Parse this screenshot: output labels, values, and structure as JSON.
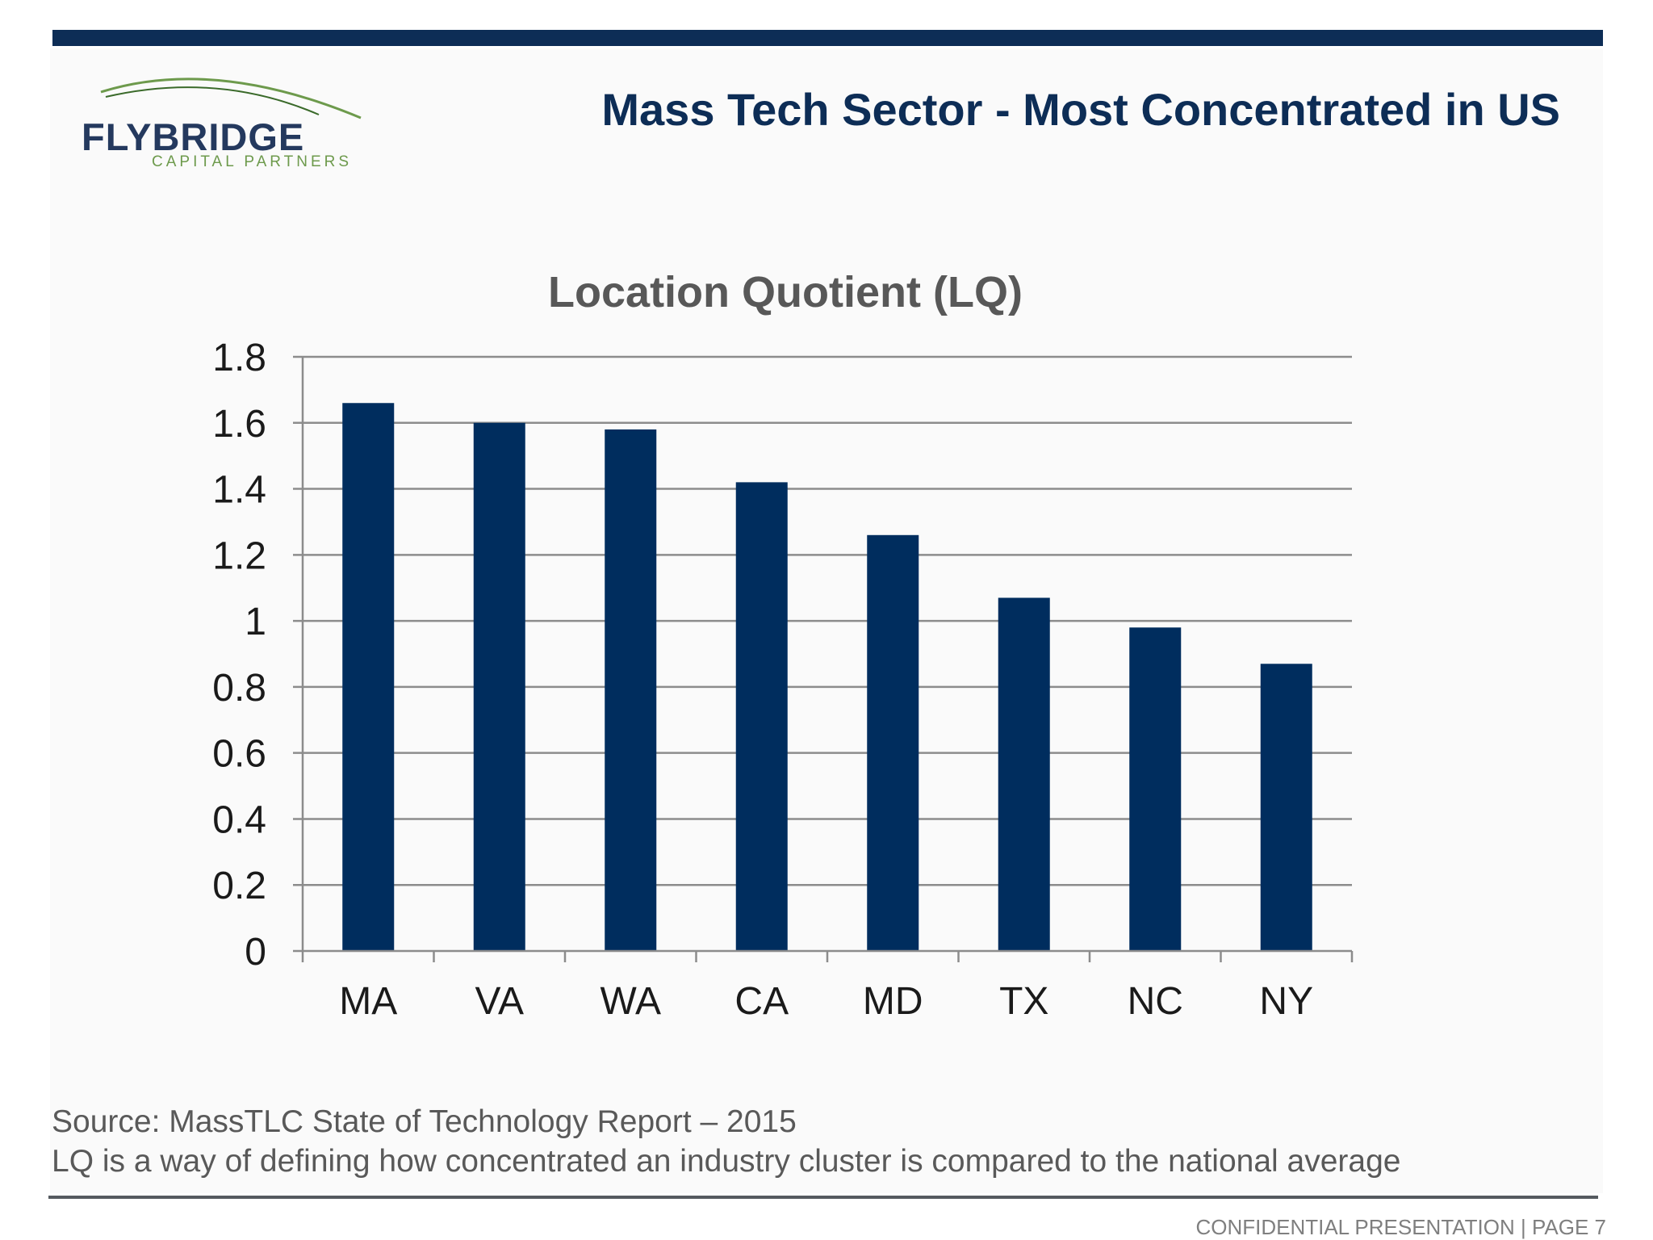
{
  "logo": {
    "word": "FLYBRIDGE",
    "sub": "CAPITAL PARTNERS"
  },
  "slide_title": "Mass Tech Sector - Most Concentrated in US",
  "colors": {
    "bar": "#002d5e",
    "title": "#0d2d56",
    "grid": "#8c8c8c"
  },
  "chart_data": {
    "type": "bar",
    "title": "Location Quotient (LQ)",
    "categories": [
      "MA",
      "VA",
      "WA",
      "CA",
      "MD",
      "TX",
      "NC",
      "NY"
    ],
    "values": [
      1.66,
      1.6,
      1.58,
      1.42,
      1.26,
      1.07,
      0.98,
      0.87
    ],
    "yticks": [
      "0",
      "0.2",
      "0.4",
      "0.6",
      "0.8",
      "1",
      "1.2",
      "1.4",
      "1.6",
      "1.8"
    ],
    "ylim": [
      0,
      1.8
    ],
    "xlabel": "",
    "ylabel": "",
    "grid": true,
    "legend": "none"
  },
  "source": {
    "line1": "Source:  MassTLC State of Technology Report – 2015",
    "line2": "LQ is a way of defining how concentrated an industry cluster is compared to the national average"
  },
  "footer": "CONFIDENTIAL PRESENTATION  |  PAGE 7"
}
